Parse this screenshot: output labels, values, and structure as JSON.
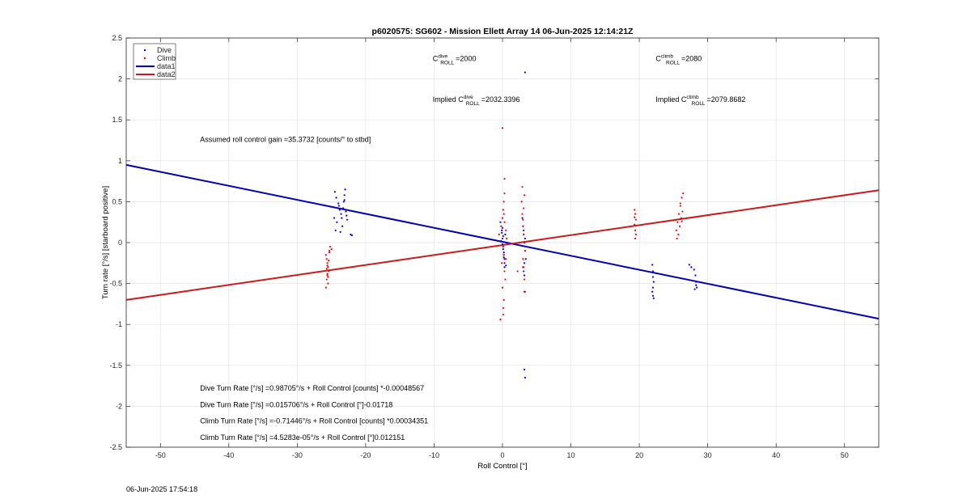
{
  "chart_data": {
    "type": "scatter",
    "title": "p6020575: SG602 - Mission Ellett Array 14 06-Jun-2025 12:14:21Z",
    "xlabel": "Roll Control [°]",
    "ylabel": "Turn rate [°/s] [starboard positive]",
    "xlim": [
      -55,
      55
    ],
    "ylim": [
      -2.5,
      2.5
    ],
    "xticks": [
      -50,
      -40,
      -30,
      -20,
      -10,
      0,
      10,
      20,
      30,
      40,
      50
    ],
    "yticks": [
      -2.5,
      -2,
      -1.5,
      -1,
      -0.5,
      0,
      0.5,
      1,
      1.5,
      2,
      2.5
    ],
    "grid": true,
    "legend_position": "top-left",
    "colors": {
      "dive": "#0000ff",
      "climb": "#ff0000",
      "data1": "#0000b3",
      "data2": "#cc1a1a"
    },
    "series": [
      {
        "name": "Dive",
        "kind": "points",
        "x": [
          -24.5,
          -24.3,
          -24.0,
          -23.8,
          -23.6,
          -23.5,
          -23.3,
          -23.2,
          -23.1,
          -23.0,
          -22.9,
          -22.8,
          -24.2,
          -23.4,
          -23.7,
          -22.2,
          -22.0,
          -24.6,
          -23.9,
          -23.1,
          -22.7,
          -24.4,
          -0.3,
          -0.1,
          0.0,
          0.1,
          0.2,
          0.3,
          0.5,
          0.4,
          -0.2,
          0.1,
          0.0,
          0.2,
          0.3,
          0.1,
          0.0,
          -0.1,
          0.2,
          0.3,
          2.9,
          3.0,
          3.1,
          3.2,
          3.3,
          3.4,
          3.0,
          3.1,
          3.2,
          3.3,
          3.2,
          3.3,
          3.2,
          3.3,
          3.1,
          3.2,
          21.9,
          22.0,
          22.0,
          22.1,
          22.0,
          21.9,
          22.0,
          22.1,
          27.3,
          27.6,
          28.0,
          28.2,
          28.3,
          28.4,
          28.1,
          28.3
        ],
        "y": [
          0.62,
          0.55,
          0.48,
          0.4,
          0.35,
          0.3,
          0.42,
          0.5,
          0.58,
          0.65,
          0.38,
          0.33,
          0.25,
          0.2,
          0.13,
          0.1,
          0.09,
          0.3,
          0.45,
          0.52,
          0.28,
          0.15,
          0.25,
          0.15,
          0.05,
          -0.05,
          -0.12,
          -0.2,
          -0.28,
          0.1,
          0.02,
          -0.08,
          0.18,
          -0.15,
          -0.25,
          0.08,
          -0.02,
          0.12,
          -0.18,
          -0.3,
          0.3,
          0.2,
          0.1,
          0.0,
          -0.1,
          -0.2,
          -0.3,
          -0.35,
          -0.4,
          0.05,
          -1.55,
          -1.65,
          -0.6,
          2.08,
          0.15,
          -0.25,
          -0.27,
          -0.35,
          -0.42,
          -0.48,
          -0.55,
          -0.6,
          -0.65,
          -0.68,
          -0.27,
          -0.3,
          -0.33,
          -0.4,
          -0.48,
          -0.55,
          -0.57,
          -0.52
        ]
      },
      {
        "name": "Climb",
        "kind": "points",
        "x": [
          -25.8,
          -25.7,
          -25.6,
          -25.5,
          -25.4,
          -25.6,
          -25.7,
          -25.5,
          -25.3,
          -25.2,
          -25.0,
          -25.6,
          -25.8,
          -25.4,
          -25.6,
          -25.3,
          -25.5,
          -25.7,
          -0.5,
          -0.2,
          0.0,
          0.1,
          0.2,
          0.3,
          0.5,
          0.6,
          0.1,
          0.2,
          -0.1,
          0.3,
          0.4,
          0.0,
          0.2,
          0.1,
          0.3,
          0.0,
          0.5,
          0.2,
          0.1,
          -0.3,
          0.3,
          2.8,
          2.9,
          3.0,
          3.1,
          3.2,
          3.3,
          3.0,
          3.1,
          3.2,
          3.3,
          3.2,
          3.1,
          3.0,
          2.9,
          2.2,
          19.3,
          19.4,
          19.5,
          19.3,
          19.4,
          19.5,
          19.4,
          19.3,
          25.4,
          25.6,
          25.8,
          26.0,
          26.2,
          26.4,
          26.1,
          25.9,
          25.5,
          26.3,
          26.0,
          25.7,
          26.2
        ],
        "y": [
          -0.15,
          -0.2,
          -0.25,
          -0.3,
          -0.35,
          -0.4,
          -0.45,
          -0.5,
          -0.1,
          -0.05,
          -0.08,
          -0.28,
          -0.55,
          -0.22,
          -0.38,
          -0.12,
          -0.42,
          -0.32,
          0.1,
          0.2,
          0.3,
          0.4,
          0.5,
          0.6,
          0.15,
          0.05,
          -0.05,
          -0.15,
          -0.25,
          -0.35,
          -0.45,
          -0.55,
          -0.7,
          -0.8,
          0.78,
          1.4,
          -0.2,
          0.35,
          -0.88,
          -0.94,
          0.25,
          0.5,
          0.35,
          0.2,
          0.1,
          0.0,
          -0.1,
          -0.2,
          -0.3,
          -0.45,
          -0.6,
          0.58,
          0.42,
          0.28,
          0.68,
          -0.35,
          0.4,
          0.35,
          0.28,
          0.22,
          0.15,
          0.1,
          0.05,
          0.31,
          0.15,
          0.25,
          0.35,
          0.45,
          0.55,
          0.6,
          0.3,
          0.2,
          0.05,
          0.38,
          0.48,
          0.1,
          0.26
        ]
      },
      {
        "name": "data1",
        "kind": "line",
        "x": [
          -55,
          55
        ],
        "y": [
          0.95,
          -0.93
        ]
      },
      {
        "name": "data2",
        "kind": "line",
        "x": [
          -55,
          55
        ],
        "y": [
          -0.7,
          0.64
        ]
      }
    ],
    "annotations": [
      {
        "parts": [
          "C",
          "dive",
          "ROLL",
          "=2000"
        ],
        "x": -10.2,
        "y": 2.22
      },
      {
        "parts": [
          "C",
          "climb",
          "ROLL",
          "=2080"
        ],
        "x": 22.4,
        "y": 2.22
      },
      {
        "parts": [
          "Implied C",
          "dive",
          "ROLL",
          "=2032.3396"
        ],
        "x": -10.2,
        "y": 1.72
      },
      {
        "parts": [
          "Implied C",
          "climb",
          "ROLL",
          "=2079.8682"
        ],
        "x": 22.4,
        "y": 1.72
      },
      {
        "parts": [
          "Assumed roll control gain =35.3732 [counts/° to stbd]"
        ],
        "x": -44.2,
        "y": 1.23
      },
      {
        "parts": [
          "Dive Turn Rate [°/s] =0.98705°/s + Roll Control [counts] *-0.00048567"
        ],
        "x": -44.2,
        "y": -1.81
      },
      {
        "parts": [
          "Dive Turn Rate [°/s] =0.015706°/s + Roll Control [°]-0.01718"
        ],
        "x": -44.2,
        "y": -2.01
      },
      {
        "parts": [
          "Climb Turn Rate [°/s] =-0.71446°/s + Roll Control [counts] *0.00034351"
        ],
        "x": -44.2,
        "y": -2.21
      },
      {
        "parts": [
          "Climb Turn Rate [°/s] =4.5283e-05°/s + Roll Control [°]0.012151"
        ],
        "x": -44.2,
        "y": -2.41
      }
    ]
  },
  "timestamp": "06-Jun-2025 17:54:18"
}
